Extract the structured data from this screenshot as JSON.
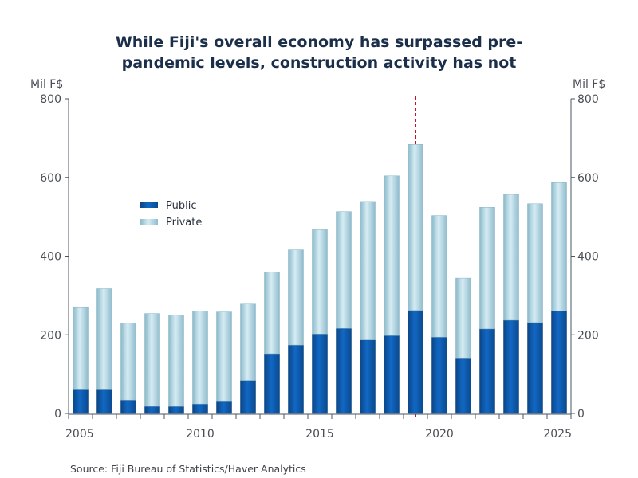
{
  "chart_data": {
    "type": "bar",
    "stacked": true,
    "title": "While Fiji's overall economy has surpassed pre-pandemic levels, construction activity has not",
    "title_lines": [
      "While Fiji's overall economy has surpassed pre-",
      "pandemic levels, construction activity has not"
    ],
    "ylabel_left": "Mil F$",
    "ylabel_right": "Mil F$",
    "xlabel": "",
    "ylim": [
      0,
      800
    ],
    "yticks": [
      0,
      200,
      400,
      600,
      800
    ],
    "xtick_labels": [
      "2005",
      "2010",
      "2015",
      "2020",
      "2025"
    ],
    "categories": [
      "2005",
      "2006",
      "2007",
      "2008",
      "2009",
      "2010",
      "2011",
      "2012",
      "2013",
      "2014",
      "2015",
      "2016",
      "2017",
      "2018",
      "2019",
      "2020",
      "2021",
      "2022",
      "2023",
      "2024",
      "2025"
    ],
    "series": [
      {
        "name": "Public",
        "color": "#0d57a8",
        "values": [
          62,
          62,
          34,
          18,
          18,
          24,
          32,
          84,
          152,
          174,
          202,
          216,
          187,
          198,
          262,
          194,
          141,
          215,
          237,
          231,
          260
        ]
      },
      {
        "name": "Private",
        "color": "#a9d0df",
        "values": [
          209,
          255,
          196,
          236,
          232,
          236,
          226,
          196,
          208,
          242,
          265,
          297,
          352,
          406,
          422,
          309,
          203,
          309,
          320,
          302,
          327
        ]
      }
    ],
    "totals": [
      271,
      317,
      230,
      254,
      250,
      260,
      258,
      280,
      360,
      416,
      467,
      513,
      539,
      604,
      684,
      503,
      344,
      524,
      557,
      533,
      587
    ],
    "annotations": [
      {
        "type": "vertical-dashed-line",
        "x": "2019",
        "color": "#c0142b"
      }
    ],
    "legend": {
      "placement": "upper-left",
      "entries": [
        "Public",
        "Private"
      ]
    },
    "grid": false
  },
  "source": "Source:  Fiji Bureau of Statistics/Haver Analytics"
}
